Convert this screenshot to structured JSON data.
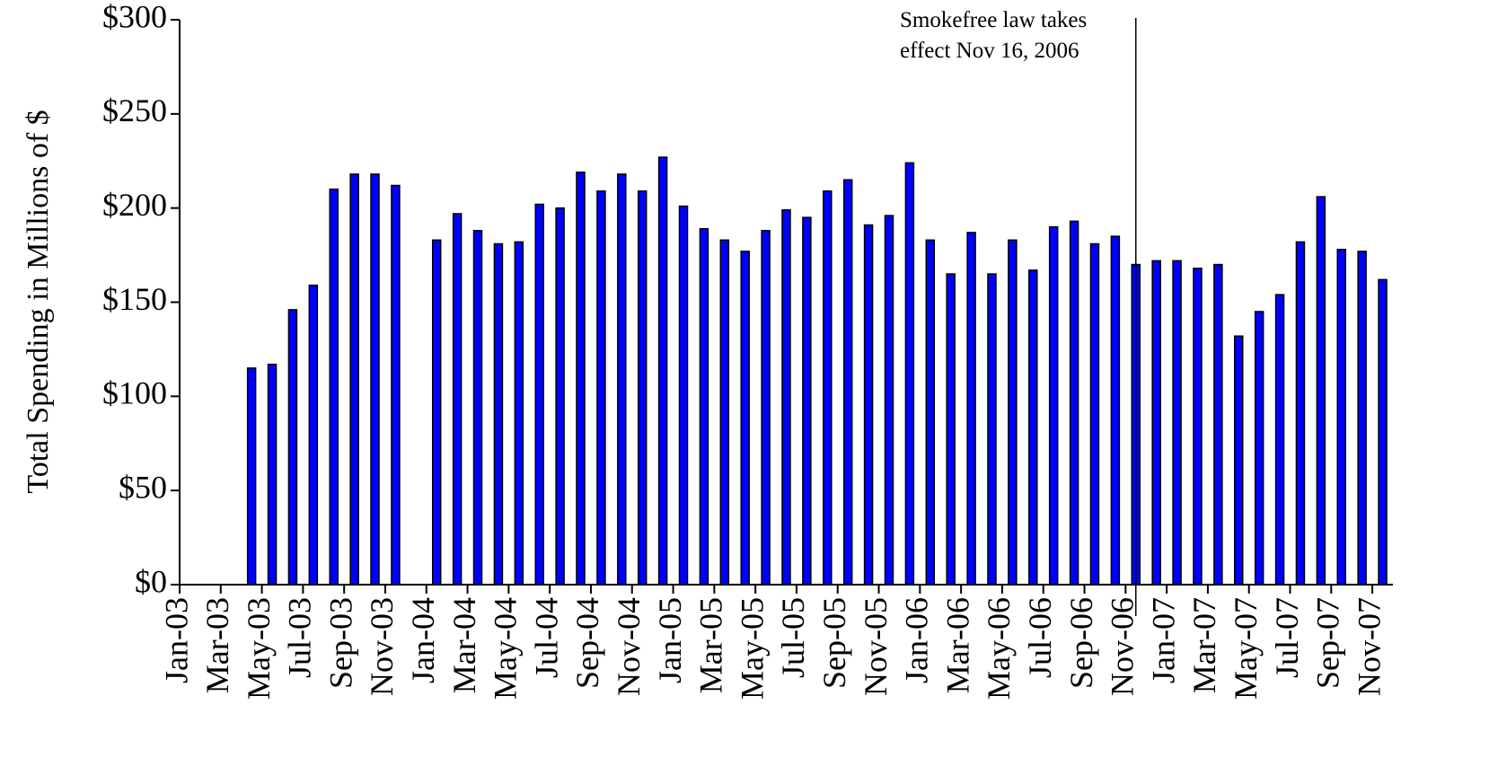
{
  "chart_data": {
    "type": "bar",
    "y_label": "Total Spending in Millions of $",
    "annotation": [
      "Smokefree law takes",
      "effect Nov 16, 2006"
    ],
    "color": "#0000ff",
    "categories": [
      "Jan-03",
      null,
      "Mar-03",
      null,
      "May-03",
      null,
      "Jul-03",
      null,
      "Sep-03",
      null,
      "Nov-03",
      null,
      "Jan-04",
      null,
      "Mar-04",
      null,
      "May-04",
      null,
      "Jul-04",
      null,
      "Sep-04",
      null,
      "Nov-04",
      null,
      "Jan-05",
      null,
      "Mar-05",
      null,
      "May-05",
      null,
      "Jul-05",
      null,
      "Sep-05",
      null,
      "Nov-05",
      null,
      "Jan-06",
      null,
      "Mar-06",
      null,
      "May-06",
      null,
      "Jul-06",
      null,
      "Sep-06",
      null,
      "Nov-06",
      null,
      "Jan-07",
      null,
      "Mar-07",
      null,
      "May-07",
      null,
      "Jul-07",
      null,
      "Sep-07",
      null,
      "Nov-07"
    ],
    "values": [
      null,
      null,
      null,
      115,
      117,
      146,
      159,
      210,
      218,
      218,
      212,
      null,
      183,
      197,
      188,
      181,
      182,
      202,
      200,
      219,
      209,
      218,
      209,
      227,
      201,
      189,
      183,
      177,
      188,
      199,
      195,
      209,
      215,
      191,
      196,
      224,
      183,
      165,
      187,
      165,
      183,
      167,
      190,
      193,
      181,
      185,
      170,
      172,
      172,
      168,
      170,
      132,
      145,
      154,
      182,
      206,
      178,
      177,
      162
    ],
    "ylim": [
      0,
      300
    ],
    "yticks": [
      {
        "value": 0,
        "label": "$0"
      },
      {
        "value": 50,
        "label": "$50"
      },
      {
        "value": 100,
        "label": "$100"
      },
      {
        "value": 150,
        "label": "$150"
      },
      {
        "value": 200,
        "label": "$200"
      },
      {
        "value": 250,
        "label": "$250"
      },
      {
        "value": 300,
        "label": "$300"
      }
    ],
    "grid": false
  }
}
